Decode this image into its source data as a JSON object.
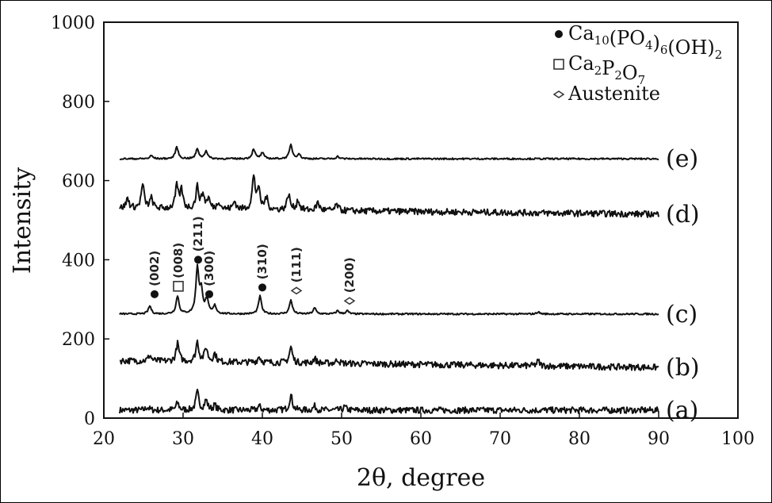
{
  "chart_data": {
    "type": "line",
    "xlabel": "2θ, degree",
    "ylabel": "Intensity",
    "xlim": [
      20,
      100
    ],
    "ylim": [
      0,
      1000
    ],
    "x_ticks": [
      "20",
      "30",
      "40",
      "50",
      "60",
      "70",
      "80",
      "90",
      "100"
    ],
    "y_ticks": [
      "0",
      "200",
      "400",
      "600",
      "800",
      "1000"
    ],
    "grid": false,
    "legend_position": "top-right",
    "legend": [
      {
        "marker": "filled-circle",
        "parts": [
          [
            "Ca",
            ""
          ],
          [
            "10",
            "sub"
          ],
          [
            "(PO",
            ""
          ],
          [
            "4",
            "sub"
          ],
          [
            ")",
            ""
          ],
          [
            "6",
            "sub"
          ],
          [
            "(OH)",
            ""
          ],
          [
            "2",
            "sub"
          ]
        ]
      },
      {
        "marker": "open-square",
        "parts": [
          [
            "Ca",
            ""
          ],
          [
            "2",
            "sub"
          ],
          [
            "P",
            ""
          ],
          [
            "2",
            "sub"
          ],
          [
            "O",
            ""
          ],
          [
            "7",
            "sub"
          ]
        ]
      },
      {
        "marker": "open-diamond",
        "parts": [
          [
            "Austenite",
            ""
          ]
        ]
      }
    ],
    "series": [
      {
        "name": "(a)",
        "baseline": 20,
        "x_range": [
          22,
          90
        ],
        "noise": 8,
        "peaks": [
          [
            25.5,
            8
          ],
          [
            29.3,
            18
          ],
          [
            31.8,
            45
          ],
          [
            32.9,
            25
          ],
          [
            34,
            12
          ],
          [
            39.6,
            10
          ],
          [
            43.6,
            38
          ],
          [
            46.6,
            10
          ],
          [
            50.4,
            8
          ]
        ]
      },
      {
        "name": "(b)",
        "baseline_start": 145,
        "baseline_end": 128,
        "x_range": [
          22,
          90
        ],
        "noise": 8,
        "peaks": [
          [
            25.8,
            15
          ],
          [
            29.3,
            45
          ],
          [
            31.8,
            50
          ],
          [
            32.9,
            35
          ],
          [
            34,
            20
          ],
          [
            39.6,
            15
          ],
          [
            43.6,
            40
          ],
          [
            46.6,
            12
          ],
          [
            49.5,
            10
          ],
          [
            74.8,
            12
          ]
        ]
      },
      {
        "name": "(c)",
        "baseline": 263,
        "x_range": [
          22,
          90
        ],
        "noise": 2,
        "peaks": [
          [
            25.8,
            20
          ],
          [
            29.3,
            45
          ],
          [
            31.8,
            115
          ],
          [
            32.3,
            55
          ],
          [
            33,
            35
          ],
          [
            34,
            20
          ],
          [
            39.7,
            45
          ],
          [
            43.6,
            35
          ],
          [
            46.6,
            15
          ],
          [
            49.5,
            8
          ],
          [
            50.7,
            8
          ],
          [
            74.8,
            5
          ]
        ]
      },
      {
        "name": "(d)",
        "baseline_start": 530,
        "baseline_end": 515,
        "x_range": [
          22,
          90
        ],
        "noise": 8,
        "peaks": [
          [
            23,
            25
          ],
          [
            24.9,
            60
          ],
          [
            26,
            25
          ],
          [
            29.2,
            55
          ],
          [
            29.8,
            45
          ],
          [
            31.8,
            55
          ],
          [
            32.5,
            35
          ],
          [
            33.2,
            25
          ],
          [
            34.5,
            20
          ],
          [
            36.5,
            20
          ],
          [
            38.9,
            80
          ],
          [
            39.5,
            50
          ],
          [
            40.5,
            30
          ],
          [
            43.3,
            40
          ],
          [
            44.5,
            25
          ],
          [
            47,
            20
          ],
          [
            49.4,
            15
          ]
        ]
      },
      {
        "name": "(e)",
        "baseline": 655,
        "x_range": [
          22,
          90
        ],
        "noise": 2,
        "peaks": [
          [
            26,
            8
          ],
          [
            29.2,
            30
          ],
          [
            31.8,
            25
          ],
          [
            32.9,
            20
          ],
          [
            38.9,
            25
          ],
          [
            40,
            15
          ],
          [
            43.6,
            35
          ],
          [
            44.6,
            12
          ],
          [
            49.5,
            6
          ]
        ]
      }
    ],
    "annotations": [
      {
        "text": "(002)",
        "x": 26.4,
        "marker": "filled-circle",
        "marker_y": 313
      },
      {
        "text": "(008)",
        "x": 29.4,
        "marker": "open-square",
        "marker_y": 333
      },
      {
        "text": "(211)",
        "x": 31.9,
        "marker": "filled-circle",
        "marker_y": 400
      },
      {
        "text": "(300)",
        "x": 33.3,
        "marker": "filled-circle",
        "marker_y": 313
      },
      {
        "text": "(310)",
        "x": 40,
        "marker": "filled-circle",
        "marker_y": 330
      },
      {
        "text": "(111)",
        "x": 44.3,
        "marker": "open-diamond",
        "marker_y": 322
      },
      {
        "text": "(200)",
        "x": 51,
        "marker": "open-diamond",
        "marker_y": 296
      }
    ]
  }
}
